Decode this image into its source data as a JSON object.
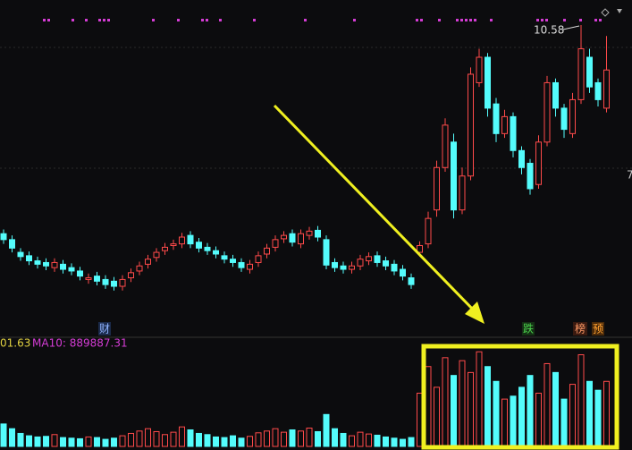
{
  "chart_data": {
    "type": "candlestick",
    "open": [
      8.12,
      8.05,
      7.9,
      7.86,
      7.8,
      7.78,
      7.72,
      7.76,
      7.72,
      7.68,
      7.58,
      7.62,
      7.58,
      7.56,
      7.5,
      7.6,
      7.68,
      7.76,
      7.84,
      7.92,
      7.98,
      8.0,
      8.1,
      8.02,
      7.96,
      7.92,
      7.86,
      7.82,
      7.78,
      7.7,
      7.78,
      7.88,
      7.96,
      8.06,
      8.12,
      8.0,
      8.1,
      8.16,
      8.05,
      7.78,
      7.74,
      7.7,
      7.74,
      7.8,
      7.86,
      7.8,
      7.76,
      7.7,
      7.6,
      7.9,
      8.0,
      8.4,
      8.9,
      9.2,
      8.4,
      8.8,
      9.9,
      10.2,
      9.65,
      9.3,
      9.5,
      9.1,
      8.95,
      8.7,
      9.2,
      9.9,
      9.6,
      9.3,
      9.7,
      10.2,
      9.9,
      9.6
    ],
    "high": [
      8.17,
      8.1,
      7.95,
      7.91,
      7.85,
      7.83,
      7.83,
      7.81,
      7.77,
      7.73,
      7.65,
      7.67,
      7.63,
      7.61,
      7.63,
      7.71,
      7.79,
      7.87,
      7.95,
      8.01,
      8.05,
      8.13,
      8.15,
      8.07,
      8.01,
      7.97,
      7.91,
      7.87,
      7.83,
      7.81,
      7.91,
      8.0,
      8.1,
      8.15,
      8.17,
      8.17,
      8.2,
      8.21,
      8.1,
      7.83,
      7.79,
      7.79,
      7.87,
      7.9,
      7.91,
      7.85,
      7.81,
      7.75,
      7.65,
      8.03,
      8.38,
      8.98,
      9.48,
      9.3,
      8.9,
      10.08,
      10.3,
      10.25,
      9.72,
      9.58,
      9.55,
      9.15,
      9.0,
      9.28,
      9.98,
      9.95,
      9.65,
      9.78,
      10.58,
      10.3,
      9.95,
      10.45
    ],
    "low": [
      8.0,
      7.9,
      7.8,
      7.75,
      7.71,
      7.69,
      7.67,
      7.65,
      7.63,
      7.57,
      7.53,
      7.51,
      7.47,
      7.45,
      7.45,
      7.55,
      7.63,
      7.71,
      7.79,
      7.87,
      7.93,
      7.95,
      7.95,
      7.9,
      7.87,
      7.83,
      7.77,
      7.73,
      7.67,
      7.65,
      7.73,
      7.83,
      7.91,
      8.01,
      7.97,
      7.95,
      8.05,
      8.03,
      7.7,
      7.67,
      7.65,
      7.65,
      7.69,
      7.75,
      7.73,
      7.69,
      7.63,
      7.57,
      7.47,
      7.85,
      7.95,
      8.32,
      8.85,
      8.3,
      8.35,
      8.75,
      9.85,
      9.5,
      9.2,
      9.25,
      9.02,
      8.82,
      8.58,
      8.65,
      9.15,
      9.5,
      9.25,
      9.25,
      9.65,
      9.78,
      9.62,
      9.55
    ],
    "close": [
      8.05,
      7.95,
      7.85,
      7.8,
      7.76,
      7.74,
      7.78,
      7.7,
      7.68,
      7.62,
      7.6,
      7.56,
      7.52,
      7.5,
      7.58,
      7.66,
      7.74,
      7.82,
      7.9,
      7.96,
      8.0,
      8.08,
      8.0,
      7.95,
      7.92,
      7.88,
      7.82,
      7.78,
      7.72,
      7.76,
      7.86,
      7.95,
      8.05,
      8.1,
      8.02,
      8.12,
      8.15,
      8.08,
      7.75,
      7.72,
      7.7,
      7.74,
      7.82,
      7.85,
      7.78,
      7.74,
      7.68,
      7.62,
      7.52,
      7.98,
      8.3,
      8.9,
      9.4,
      8.4,
      8.8,
      10.0,
      10.2,
      9.6,
      9.3,
      9.5,
      9.1,
      8.9,
      8.65,
      9.2,
      9.9,
      9.6,
      9.35,
      9.7,
      10.3,
      9.85,
      9.7,
      10.05
    ],
    "volume": [
      380000,
      300000,
      220000,
      180000,
      160000,
      170000,
      200000,
      150000,
      140000,
      130000,
      160000,
      150000,
      120000,
      140000,
      180000,
      220000,
      260000,
      300000,
      250000,
      200000,
      240000,
      330000,
      280000,
      220000,
      200000,
      160000,
      150000,
      180000,
      140000,
      170000,
      230000,
      260000,
      300000,
      240000,
      280000,
      260000,
      310000,
      250000,
      540000,
      300000,
      220000,
      180000,
      240000,
      210000,
      190000,
      160000,
      140000,
      120000,
      150000,
      900000,
      1350000,
      1000000,
      1500000,
      1200000,
      1450000,
      1250000,
      1600000,
      1350000,
      1100000,
      800000,
      850000,
      1000000,
      1200000,
      900000,
      1400000,
      1250000,
      800000,
      1050000,
      1550000,
      1100000,
      950000,
      1100000
    ],
    "ylim": [
      6.92,
      10.875
    ],
    "volume_ylim": [
      0,
      1800000
    ],
    "up_color": "#ff4a4a",
    "down_color": "#54fcfc",
    "peak_label": "10.58",
    "right_edge_label": "7",
    "ma5_label": "01.63",
    "ma10_label": "MA10: 889887.31",
    "markers": [
      "财",
      "跌",
      "榜",
      "预"
    ]
  }
}
